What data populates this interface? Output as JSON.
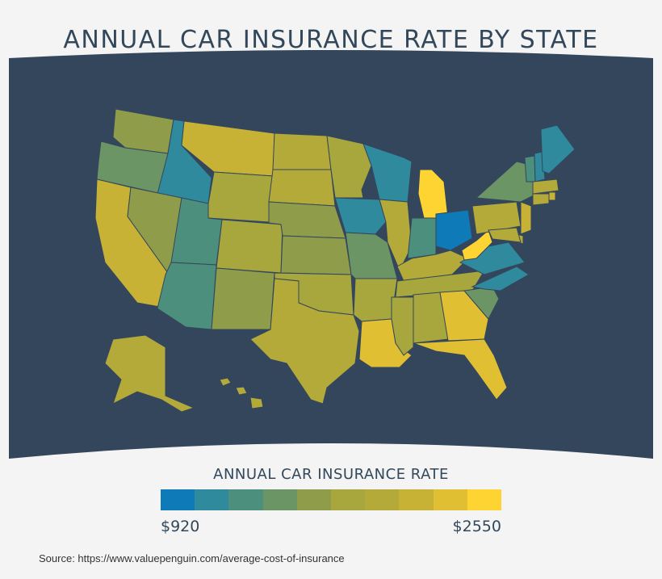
{
  "title": "ANNUAL CAR INSURANCE RATE BY STATE",
  "legend": {
    "title": "ANNUAL CAR INSURANCE RATE",
    "min_label": "$920",
    "max_label": "$2550",
    "colors": [
      "#0f7ab8",
      "#2e8a9c",
      "#4c8f7c",
      "#6c9565",
      "#8f9d4a",
      "#a7a73e",
      "#b4aa39",
      "#c7b236",
      "#e1bf33",
      "#fdd431"
    ]
  },
  "source": "Source: https://www.valuepenguin.com/average-cost-of-insurance",
  "map": {
    "background": "#34465c",
    "border_color": "#34465c"
  },
  "states": {
    "WA": 4,
    "OR": 3,
    "CA": 7,
    "ID": 1,
    "NV": 4,
    "MT": 7,
    "WY": 5,
    "UT": 2,
    "AZ": 2,
    "CO": 5,
    "NM": 4,
    "ND": 6,
    "SD": 6,
    "NE": 4,
    "KS": 4,
    "OK": 5,
    "TX": 6,
    "MN": 5,
    "IA": 1,
    "MO": 3,
    "AR": 5,
    "LA": 8,
    "WI": 1,
    "IL": 6,
    "MI": 9,
    "IN": 2,
    "OH": 0,
    "KY": 6,
    "TN": 5,
    "MS": 5,
    "AL": 5,
    "GA": 8,
    "FL": 8,
    "SC": 3,
    "NC": 1,
    "VA": 1,
    "WV": 9,
    "PA": 6,
    "NY": 3,
    "VT": 2,
    "NH": 1,
    "ME": 1,
    "MA": 6,
    "RI": 7,
    "CT": 6,
    "NJ": 7,
    "DE": 6,
    "MD": 6,
    "AK": 6,
    "HI": 6
  }
}
